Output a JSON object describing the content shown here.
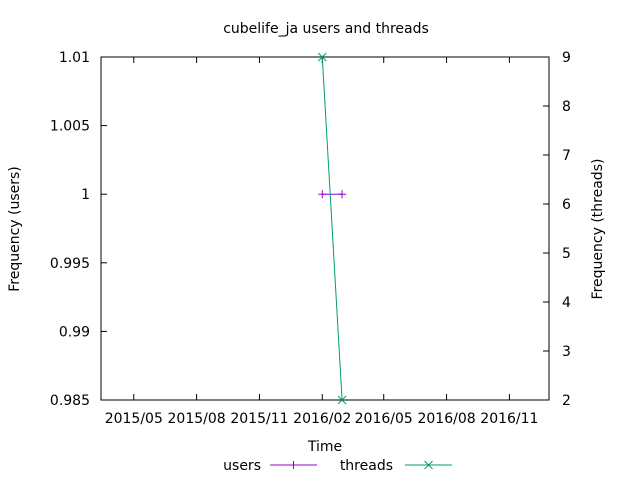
{
  "chart_data": {
    "type": "line",
    "title": "cubelife_ja users and threads",
    "xlabel": "Time",
    "ylabel_left": "Frequency (users)",
    "ylabel_right": "Frequency (threads)",
    "x_ticks": [
      "2015/05",
      "2015/08",
      "2015/11",
      "2016/02",
      "2016/05",
      "2016/08",
      "2016/11"
    ],
    "y_left_ticks": [
      "0.985",
      "0.99",
      "0.995",
      "1",
      "1.005",
      "1.01"
    ],
    "y_right_ticks": [
      "2",
      "3",
      "4",
      "5",
      "6",
      "7",
      "8",
      "9"
    ],
    "xlim": [
      "2015-03-14",
      "2016-12-29"
    ],
    "ylim_left": [
      0.985,
      1.01
    ],
    "ylim_right": [
      2,
      9
    ],
    "grid": false,
    "legend_position": "bottom",
    "series": [
      {
        "name": "users",
        "axis": "left",
        "color": "#9400d3",
        "marker": "plus",
        "points": [
          {
            "x": "2016-02-01",
            "y": 1
          },
          {
            "x": "2016-03-01",
            "y": 1
          }
        ]
      },
      {
        "name": "threads",
        "axis": "right",
        "color": "#009e73",
        "marker": "cross",
        "points": [
          {
            "x": "2016-02-01",
            "y": 9
          },
          {
            "x": "2016-03-01",
            "y": 2
          }
        ]
      }
    ]
  }
}
